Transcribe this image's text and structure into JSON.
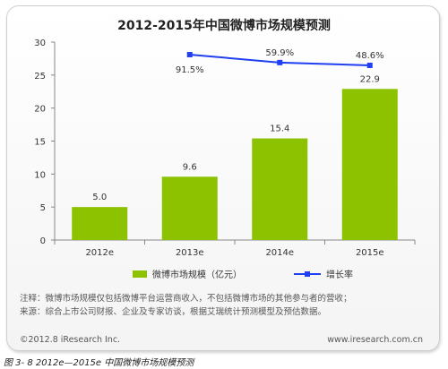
{
  "chart_data": {
    "type": "bar",
    "title": "2012-2015年中国微博市场规模预测",
    "categories": [
      "2012e",
      "2013e",
      "2014e",
      "2015e"
    ],
    "series": [
      {
        "name": "微博市场规模（亿元）",
        "type": "bar",
        "values": [
          5.0,
          9.6,
          15.4,
          22.9
        ],
        "labels": [
          "5.0",
          "9.6",
          "15.4",
          "22.9"
        ]
      },
      {
        "name": "增长率",
        "type": "line",
        "values": [
          null,
          91.5,
          59.9,
          48.6
        ],
        "labels": [
          "",
          "91.5%",
          "59.9%",
          "48.6%"
        ]
      }
    ],
    "yticks": [
      "0",
      "5",
      "10",
      "15",
      "20",
      "25",
      "30"
    ],
    "ylim": [
      0,
      30
    ],
    "legend": "bottom",
    "colors": {
      "bar": "#8cc200",
      "line": "#1f3ff0"
    }
  },
  "notes": {
    "line1": "注释：微博市场规模仅包括微博平台运营商收入，不包括微博市场的其他参与者的营收；",
    "line2": "来源：综合上市公司财报、企业及专家访谈，根据艾瑞统计预测模型及预估数据。"
  },
  "footer": {
    "copyright": "©2012.8 iResearch Inc.",
    "site": "www.iresearch.com.cn"
  },
  "caption": "图 3- 8 2012e—2015e 中国微博市场规模预测"
}
